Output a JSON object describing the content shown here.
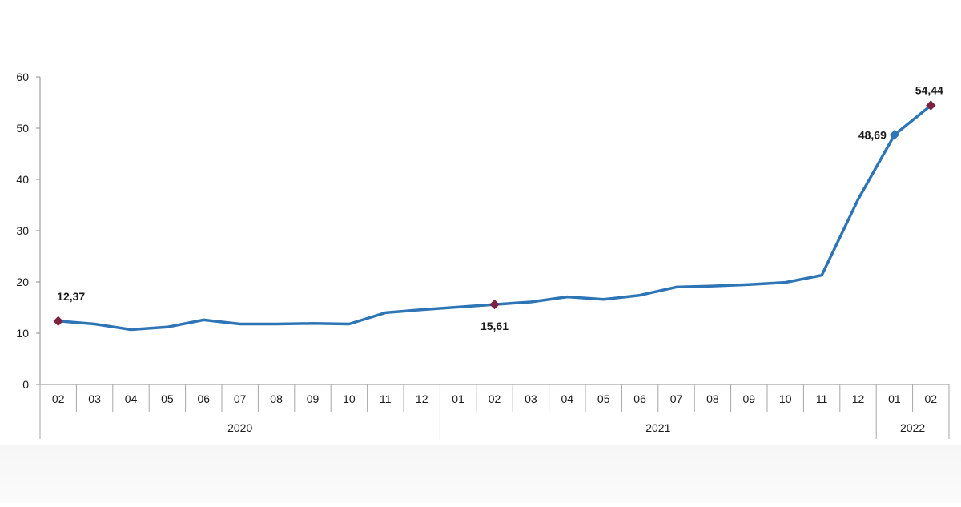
{
  "chart_data": {
    "type": "line",
    "title": "",
    "xlabel": "",
    "ylabel": "",
    "ylim": [
      0,
      60
    ],
    "yticks": [
      0,
      10,
      20,
      30,
      40,
      50,
      60
    ],
    "grid": false,
    "line_color": "#2e75b6",
    "highlight_color": "#7b2340",
    "categories": [
      "02",
      "03",
      "04",
      "05",
      "06",
      "07",
      "08",
      "09",
      "10",
      "11",
      "12",
      "01",
      "02",
      "03",
      "04",
      "05",
      "06",
      "07",
      "08",
      "09",
      "10",
      "11",
      "12",
      "01",
      "02"
    ],
    "year_groups": [
      {
        "label": "2020",
        "count": 11
      },
      {
        "label": "2021",
        "count": 12
      },
      {
        "label": "2022",
        "count": 2
      }
    ],
    "series": [
      {
        "values": [
          12.37,
          11.8,
          10.7,
          11.2,
          12.6,
          11.8,
          11.8,
          11.9,
          11.8,
          14.0,
          14.6,
          15.1,
          15.61,
          16.1,
          17.1,
          16.6,
          17.4,
          19.0,
          19.2,
          19.5,
          19.9,
          21.3,
          36.1,
          48.69,
          54.44
        ]
      }
    ],
    "annotations": [
      {
        "index": 0,
        "label": "12,37",
        "marker_color": "#7b2340",
        "position": "above"
      },
      {
        "index": 12,
        "label": "15,61",
        "marker_color": "#7b2340",
        "position": "below"
      },
      {
        "index": 23,
        "label": "48,69",
        "marker_color": "#2e75b6",
        "position": "left"
      },
      {
        "index": 24,
        "label": "54,44",
        "marker_color": "#7b2340",
        "position": "above"
      }
    ]
  }
}
